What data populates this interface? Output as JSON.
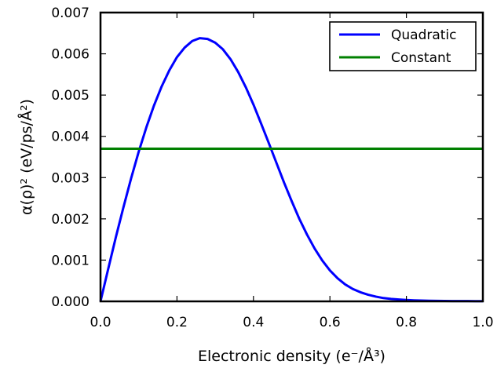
{
  "chart_data": {
    "type": "line",
    "xlabel": "Electronic density (e⁻/Å³)",
    "ylabel": "α(ρ)² (eV/ps/Å²)",
    "xlim": [
      0.0,
      1.0
    ],
    "ylim": [
      0.0,
      0.007
    ],
    "x_ticks": [
      0.0,
      0.2,
      0.4,
      0.6,
      0.8,
      1.0
    ],
    "x_tick_labels": [
      "0.0",
      "0.2",
      "0.4",
      "0.6",
      "0.8",
      "1.0"
    ],
    "y_ticks": [
      0.0,
      0.001,
      0.002,
      0.003,
      0.004,
      0.005,
      0.006,
      0.007
    ],
    "y_tick_labels": [
      "0.000",
      "0.001",
      "0.002",
      "0.003",
      "0.004",
      "0.005",
      "0.006",
      "0.007"
    ],
    "grid": false,
    "legend_position": "top-right",
    "series": [
      {
        "name": "Quadratic",
        "color": "#0000ff",
        "x": [
          0.0,
          0.02,
          0.04,
          0.06,
          0.08,
          0.1,
          0.12,
          0.14,
          0.16,
          0.18,
          0.2,
          0.22,
          0.24,
          0.26,
          0.28,
          0.3,
          0.32,
          0.34,
          0.36,
          0.38,
          0.4,
          0.42,
          0.44,
          0.46,
          0.48,
          0.5,
          0.52,
          0.54,
          0.56,
          0.58,
          0.6,
          0.62,
          0.64,
          0.66,
          0.68,
          0.7,
          0.72,
          0.74,
          0.76,
          0.78,
          0.8,
          0.82,
          0.84,
          0.86,
          0.88,
          0.9,
          0.92,
          0.94,
          0.96,
          0.98,
          1.0
        ],
        "y": [
          0.0,
          0.00078,
          0.00155,
          0.00228,
          0.00298,
          0.00363,
          0.00422,
          0.00475,
          0.00521,
          0.0056,
          0.00592,
          0.00615,
          0.00631,
          0.00638,
          0.00636,
          0.00627,
          0.00611,
          0.00587,
          0.00556,
          0.00519,
          0.00477,
          0.00431,
          0.00384,
          0.00336,
          0.00288,
          0.00243,
          0.002,
          0.00162,
          0.00128,
          0.00099,
          0.00075,
          0.00056,
          0.00041,
          0.0003,
          0.00022,
          0.00016,
          0.000115,
          8e-05,
          6e-05,
          4.5e-05,
          3.3e-05,
          2.5e-05,
          1.9e-05,
          1.5e-05,
          1.2e-05,
          1e-05,
          8e-06,
          7e-06,
          6e-06,
          5e-06,
          5e-06
        ]
      },
      {
        "name": "Constant",
        "color": "#008000",
        "x": [
          0.0,
          1.0
        ],
        "y": [
          0.0037,
          0.0037
        ]
      }
    ]
  }
}
